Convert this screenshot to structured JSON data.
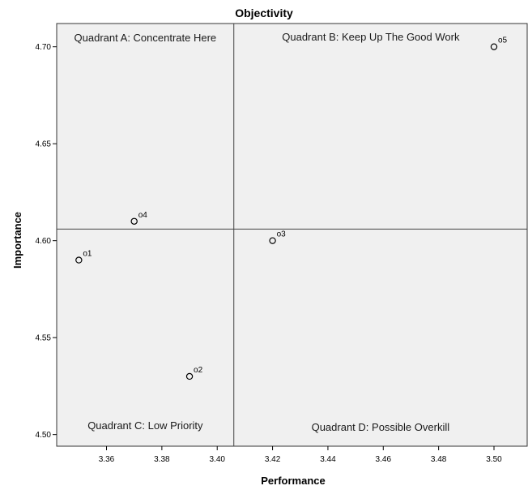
{
  "chart_data": {
    "type": "scatter",
    "title": "Objectivity",
    "xlabel": "Performance",
    "ylabel": "Importance",
    "xlim": [
      3.342,
      3.512
    ],
    "ylim": [
      4.494,
      4.712
    ],
    "xticks": [
      "3.36",
      "3.38",
      "3.40",
      "3.42",
      "3.44",
      "3.46",
      "3.48",
      "3.50"
    ],
    "yticks": [
      "4.50",
      "4.55",
      "4.60",
      "4.65",
      "4.70"
    ],
    "reference_lines": {
      "x": 3.406,
      "y": 4.606
    },
    "quadrant_labels": {
      "a": "Quadrant A: Concentrate Here",
      "b": "Quadrant B: Keep Up The Good Work",
      "c": "Quadrant C: Low Priority",
      "d": "Quadrant D: Possible Overkill"
    },
    "points": [
      {
        "label": "o1",
        "x": 3.35,
        "y": 4.59
      },
      {
        "label": "o2",
        "x": 3.39,
        "y": 4.53
      },
      {
        "label": "o3",
        "x": 3.42,
        "y": 4.6
      },
      {
        "label": "o4",
        "x": 3.37,
        "y": 4.61
      },
      {
        "label": "o5",
        "x": 3.5,
        "y": 4.7
      }
    ],
    "grid": false,
    "background_color": "#f0f0f0",
    "marker_color": "#000000"
  }
}
